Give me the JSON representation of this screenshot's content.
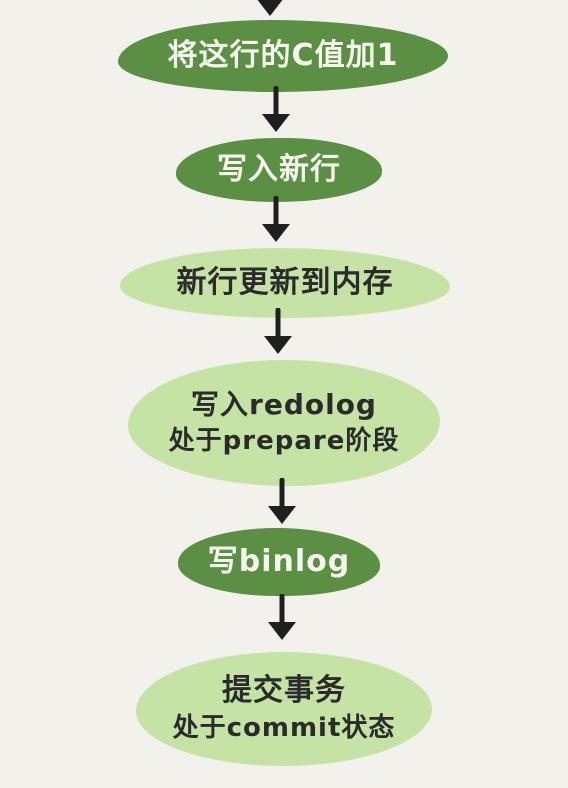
{
  "steps": [
    {
      "line1": "将这行的C值加1",
      "style": "dark"
    },
    {
      "line1": "写入新行",
      "style": "dark"
    },
    {
      "line1": "新行更新到内存",
      "style": "light"
    },
    {
      "line1": "写入redolog",
      "line2": "处于prepare阶段",
      "style": "light"
    },
    {
      "line1": "写binlog",
      "style": "dark"
    },
    {
      "line1": "提交事务",
      "line2": "处于commit状态",
      "style": "light"
    }
  ],
  "colors": {
    "background": "#f3f1ec",
    "dark_node": "#5b8f43",
    "light_node": "#c5e3a5",
    "arrow": "#1f1f1f"
  }
}
